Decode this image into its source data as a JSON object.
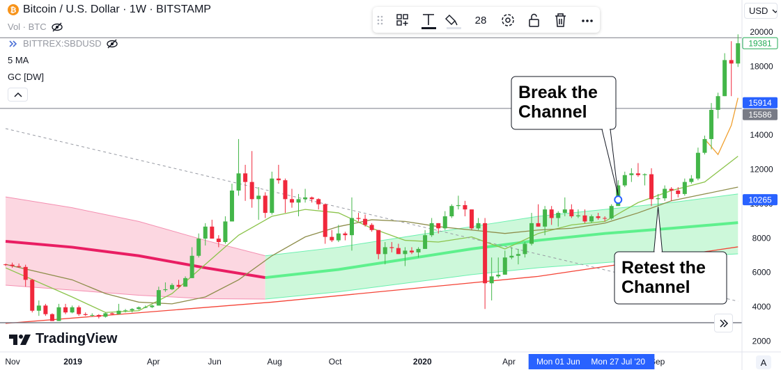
{
  "chart_data": {
    "type": "candlestick",
    "title": "Bitcoin / U.S. Dollar · 1W · BITSTAMP",
    "up_color": "#43b649",
    "down_color": "#f0283c",
    "ohlc": [
      [
        6500,
        6540,
        6400,
        6480
      ],
      [
        6480,
        6600,
        6300,
        6400
      ],
      [
        6400,
        6550,
        6300,
        6350
      ],
      [
        6350,
        6480,
        5200,
        5600
      ],
      [
        5600,
        5650,
        3700,
        3800
      ],
      [
        3800,
        4400,
        3500,
        4100
      ],
      [
        4100,
        4200,
        3500,
        3600
      ],
      [
        3600,
        3650,
        3200,
        3200
      ],
      [
        3200,
        4200,
        3200,
        4000
      ],
      [
        4000,
        4200,
        3600,
        3700
      ],
      [
        3700,
        4100,
        3650,
        4000
      ],
      [
        4000,
        4100,
        3500,
        3600
      ],
      [
        3600,
        3700,
        3500,
        3550
      ],
      [
        3550,
        3650,
        3450,
        3550
      ],
      [
        3550,
        3600,
        3350,
        3450
      ],
      [
        3450,
        3700,
        3400,
        3650
      ],
      [
        3650,
        3700,
        3550,
        3600
      ],
      [
        3600,
        4200,
        3600,
        3800
      ],
      [
        3800,
        3900,
        3700,
        3820
      ],
      [
        3820,
        3950,
        3700,
        3900
      ],
      [
        3900,
        4050,
        3850,
        4000
      ],
      [
        4000,
        4100,
        3950,
        4010
      ],
      [
        4010,
        4150,
        3950,
        4100
      ],
      [
        4100,
        5200,
        4100,
        5000
      ],
      [
        5000,
        5450,
        4900,
        5050
      ],
      [
        5050,
        5400,
        5000,
        5300
      ],
      [
        5300,
        5600,
        5100,
        5200
      ],
      [
        5200,
        5800,
        5200,
        5700
      ],
      [
        5700,
        7500,
        5700,
        7000
      ],
      [
        7000,
        8300,
        6900,
        8000
      ],
      [
        8000,
        8900,
        7600,
        8700
      ],
      [
        8700,
        9100,
        8000,
        8000
      ],
      [
        8000,
        8200,
        7500,
        7800
      ],
      [
        7800,
        9300,
        7700,
        9000
      ],
      [
        9000,
        11200,
        9000,
        10800
      ],
      [
        10800,
        13800,
        10500,
        11800
      ],
      [
        11800,
        12300,
        10200,
        11300
      ],
      [
        11300,
        13100,
        9800,
        10300
      ],
      [
        10300,
        11000,
        9100,
        10500
      ],
      [
        10500,
        10700,
        9200,
        9500
      ],
      [
        9500,
        11900,
        9400,
        11500
      ],
      [
        11500,
        12300,
        11200,
        11400
      ],
      [
        11400,
        11500,
        9500,
        10300
      ],
      [
        10300,
        10900,
        9800,
        10100
      ],
      [
        10100,
        10600,
        9300,
        10300
      ],
      [
        10300,
        10900,
        10100,
        10400
      ],
      [
        10400,
        10450,
        10100,
        10300
      ],
      [
        10300,
        10350,
        9700,
        10000
      ],
      [
        10000,
        10050,
        7700,
        8100
      ],
      [
        8100,
        8500,
        7800,
        7900
      ],
      [
        7900,
        8800,
        7800,
        8300
      ],
      [
        8300,
        8400,
        7900,
        8200
      ],
      [
        8200,
        10400,
        7300,
        9200
      ],
      [
        9200,
        9500,
        9000,
        9150
      ],
      [
        9150,
        9400,
        8700,
        8800
      ],
      [
        8800,
        8900,
        8400,
        8500
      ],
      [
        8500,
        8500,
        6800,
        7100
      ],
      [
        7100,
        7800,
        6500,
        7500
      ],
      [
        7500,
        7800,
        7200,
        7450
      ],
      [
        7450,
        7700,
        7100,
        7100
      ],
      [
        7100,
        7500,
        6400,
        7300
      ],
      [
        7300,
        7500,
        7100,
        7200
      ],
      [
        7200,
        7500,
        6900,
        7400
      ],
      [
        7400,
        8500,
        7400,
        8200
      ],
      [
        8200,
        9200,
        8100,
        8900
      ],
      [
        8900,
        8900,
        8300,
        8600
      ],
      [
        8600,
        9600,
        8500,
        9300
      ],
      [
        9300,
        10000,
        9200,
        9900
      ],
      [
        9900,
        10500,
        9700,
        9950
      ],
      [
        9950,
        10200,
        9300,
        9700
      ],
      [
        9700,
        9700,
        8500,
        8600
      ],
      [
        8600,
        9200,
        8500,
        8900
      ],
      [
        8900,
        9200,
        3900,
        5400
      ],
      [
        5400,
        6900,
        4400,
        5800
      ],
      [
        5800,
        6900,
        5700,
        5900
      ],
      [
        5900,
        7300,
        5900,
        6900
      ],
      [
        6900,
        7500,
        6800,
        7000
      ],
      [
        7000,
        7400,
        6500,
        7100
      ],
      [
        7100,
        7800,
        6900,
        7700
      ],
      [
        7700,
        9500,
        7600,
        8900
      ],
      [
        8900,
        10000,
        8700,
        8700
      ],
      [
        8700,
        9900,
        8200,
        9700
      ],
      [
        9700,
        9900,
        8800,
        9200
      ],
      [
        9200,
        9600,
        8700,
        9500
      ],
      [
        9500,
        10400,
        9300,
        9700
      ],
      [
        9700,
        10000,
        9200,
        9300
      ],
      [
        9300,
        9700,
        9200,
        9350
      ],
      [
        9350,
        9700,
        8900,
        9000
      ],
      [
        9000,
        9400,
        8900,
        9300
      ],
      [
        9300,
        9500,
        9100,
        9200
      ],
      [
        9200,
        9300,
        9000,
        9180
      ],
      [
        9180,
        10000,
        9100,
        9900
      ],
      [
        9900,
        11400,
        9900,
        11100
      ],
      [
        11100,
        11900,
        11000,
        11700
      ],
      [
        11700,
        12100,
        11300,
        11800
      ],
      [
        11800,
        12400,
        11600,
        11700
      ],
      [
        11700,
        11800,
        11100,
        11750
      ],
      [
        11750,
        12100,
        9900,
        10300
      ],
      [
        10300,
        10600,
        9900,
        10350
      ],
      [
        10350,
        11100,
        10200,
        10900
      ],
      [
        10900,
        11000,
        10200,
        10800
      ],
      [
        10800,
        11000,
        10400,
        10600
      ],
      [
        10600,
        11500,
        10500,
        11300
      ],
      [
        11300,
        11700,
        11200,
        11500
      ],
      [
        11500,
        13300,
        11400,
        13000
      ],
      [
        13000,
        14000,
        12900,
        13800
      ],
      [
        13800,
        15900,
        13200,
        15500
      ],
      [
        15500,
        16500,
        15000,
        16300
      ],
      [
        16300,
        18800,
        16300,
        18400
      ],
      [
        18400,
        19500,
        16300,
        18200
      ],
      [
        18200,
        19900,
        18000,
        19381
      ]
    ],
    "xlim": [
      -0.84,
      110.6
    ],
    "xticks": [
      {
        "value": 1.05,
        "label": "Nov"
      },
      {
        "value": 10.1,
        "label": "2019"
      },
      {
        "value": 22.2,
        "label": "Apr"
      },
      {
        "value": 31.4,
        "label": "Jun"
      },
      {
        "value": 40.4,
        "label": "Aug"
      },
      {
        "value": 49.5,
        "label": "Oct"
      },
      {
        "value": 62.6,
        "label": "2020"
      },
      {
        "value": 75.6,
        "label": "Apr"
      },
      {
        "value": 97.9,
        "label": "Sep"
      }
    ],
    "range_labels": [
      {
        "value": 84,
        "label": "Mon 01 Jun '20"
      },
      {
        "value": 92,
        "label": "Mon 27 Jul '20"
      }
    ],
    "ylim": [
      1400,
      21900
    ],
    "yticks": [
      2000,
      4000,
      6000,
      8000,
      10000,
      12000,
      14000,
      16000,
      18000,
      20000
    ],
    "price_labels": [
      19381,
      15914,
      15586,
      10265
    ],
    "price_label_colors": [
      "#22ab54",
      "#2962ff",
      "#787b86",
      "#2962ff"
    ],
    "horizontal_lines": [
      19700,
      15586,
      3100
    ],
    "bands": [
      {
        "fill_color": "#fcd0dc",
        "line_color": "#f48fb1",
        "mid_color": "#e91e63",
        "x": [
          0,
          10,
          20,
          30,
          39
        ],
        "upper": [
          10430,
          9800,
          9000,
          7900,
          7000
        ],
        "middle": [
          7840,
          7500,
          7000,
          6300,
          5730
        ],
        "lower": [
          5290,
          5000,
          4700,
          4500,
          4480
        ]
      },
      {
        "fill_color": "#c4f7d4",
        "line_color": "#69f0ae",
        "mid_color": "#5ef08d",
        "x": [
          39,
          50,
          60,
          70,
          80,
          90,
          100,
          110
        ],
        "upper": [
          7000,
          7500,
          8100,
          8700,
          9300,
          9700,
          10100,
          10600
        ],
        "middle": [
          5730,
          6200,
          6800,
          7400,
          7900,
          8300,
          8600,
          8930
        ],
        "lower": [
          4480,
          4900,
          5400,
          5900,
          6300,
          6600,
          6900,
          7110
        ]
      }
    ],
    "overlays": [
      {
        "color": "#8bc34a",
        "x": [
          0,
          10,
          15,
          20,
          25,
          30,
          35,
          40,
          45,
          50,
          55,
          60,
          65,
          70,
          75,
          80,
          85,
          90,
          95,
          100,
          105,
          110
        ],
        "values": [
          6300,
          4600,
          3700,
          3800,
          4800,
          6500,
          8200,
          9300,
          9700,
          9500,
          8600,
          7900,
          7800,
          8100,
          7400,
          8300,
          8800,
          9000,
          10100,
          10800,
          11300,
          12800
        ]
      },
      {
        "color": "#8d8d4a",
        "x": [
          0,
          10,
          15,
          20,
          25,
          30,
          35,
          40,
          45,
          50,
          55,
          60,
          65,
          70,
          75,
          80,
          85,
          90,
          95,
          100,
          105,
          110
        ],
        "values": [
          6500,
          5600,
          4800,
          4300,
          4200,
          4600,
          5600,
          7000,
          8100,
          8700,
          9100,
          9000,
          8700,
          8500,
          8300,
          8500,
          8600,
          8900,
          9500,
          10200,
          10600,
          11000
        ]
      },
      {
        "color": "#f0a030",
        "x": [
          105,
          107,
          109,
          110
        ],
        "values": [
          13800,
          12900,
          14600,
          16200
        ]
      },
      {
        "color": "#f44336",
        "x": [
          0,
          40,
          80,
          110
        ],
        "values": [
          3060,
          4300,
          5800,
          7520
        ]
      }
    ],
    "trend_line": {
      "x": [
        0,
        110
      ],
      "values": [
        14410,
        4350
      ]
    },
    "marker": {
      "x": 92,
      "y": 10265
    },
    "annotations": [
      {
        "text": "Break the Channel",
        "x": 92,
        "y": 10265
      },
      {
        "text": "Retest the Channel",
        "x": 98,
        "y": 10100
      }
    ]
  },
  "ui": {
    "legend": [
      "Vol · BTC",
      "BITTREX:SBDUSD",
      "5 MA",
      "GC [DW]"
    ],
    "toolbar_size": "28",
    "currency": "USD",
    "logo": "TradingView",
    "scale_button": "A"
  }
}
